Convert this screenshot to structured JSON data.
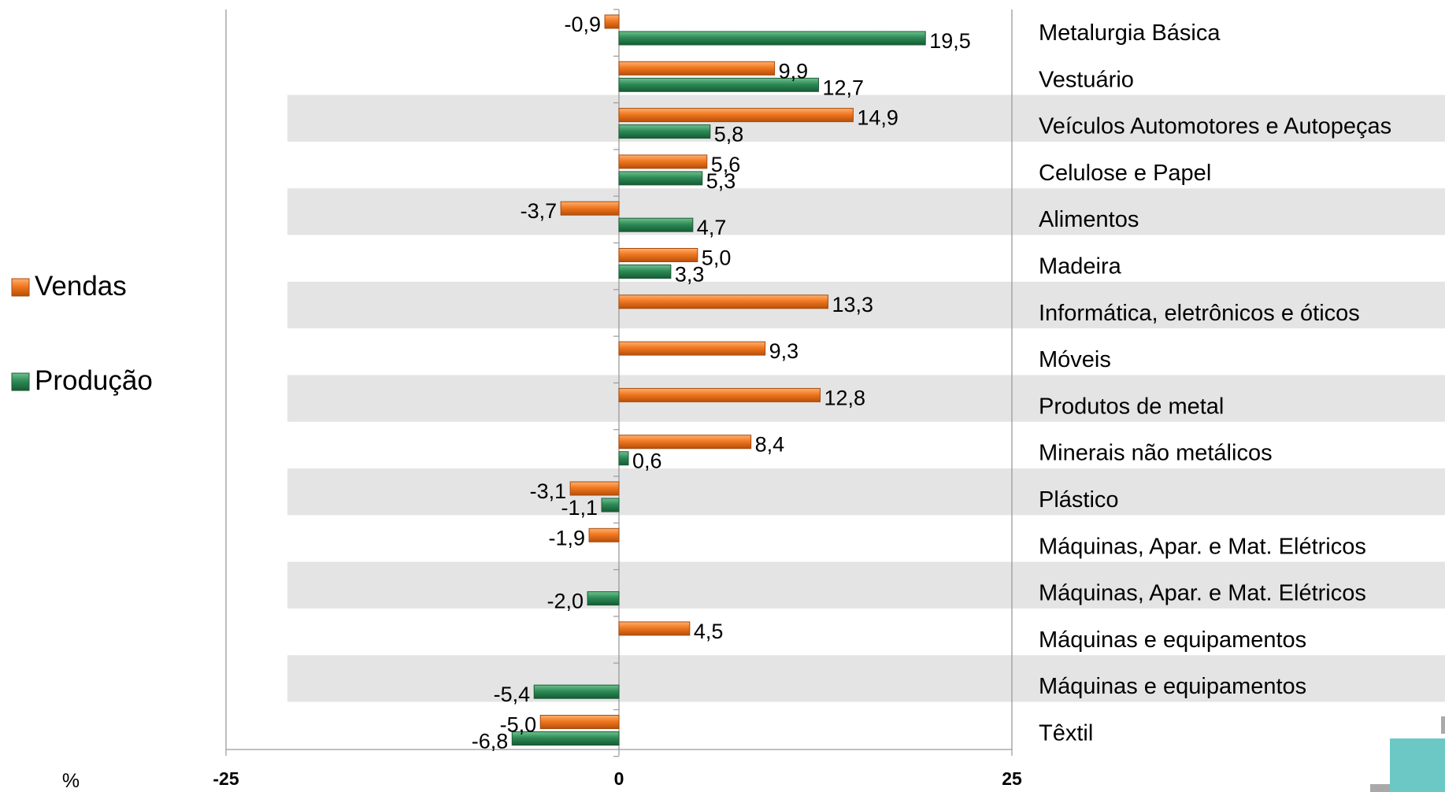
{
  "chart_data": {
    "type": "bar",
    "orientation": "horizontal",
    "xlim": [
      -25,
      25
    ],
    "x_ticks": [
      "-25",
      "0",
      "25"
    ],
    "unit_label": "%",
    "legend_position": "left",
    "colors": {
      "Vendas": "#f07820",
      "Produção": "#2e8b57",
      "band": "#e4e4e4"
    },
    "categories": [
      "Metalurgia Básica",
      "Vestuário",
      "Veículos Automotores e Autopeças",
      "Celulose e Papel",
      "Alimentos",
      "Madeira",
      "Informática, eletrônicos e óticos",
      "Móveis",
      "Produtos de metal",
      "Minerais não metálicos",
      "Plástico",
      "Máquinas, Apar. e Mat. Elétricos",
      "Máquinas, Apar. e Mat. Elétricos",
      "Máquinas e equipamentos",
      "Máquinas e equipamentos",
      "Têxtil"
    ],
    "series": [
      {
        "name": "Vendas",
        "values": [
          -0.9,
          9.9,
          14.9,
          5.6,
          -3.7,
          5.0,
          13.3,
          9.3,
          12.8,
          8.4,
          -3.1,
          -1.9,
          null,
          4.5,
          null,
          -5.0
        ],
        "labels": [
          "-0,9",
          "9,9",
          "14,9",
          "5,6",
          "-3,7",
          "5,0",
          "13,3",
          "9,3",
          "12,8",
          "8,4",
          "-3,1",
          "-1,9",
          null,
          "4,5",
          null,
          "-5,0"
        ]
      },
      {
        "name": "Produção",
        "values": [
          19.5,
          12.7,
          5.8,
          5.3,
          4.7,
          3.3,
          null,
          null,
          null,
          0.6,
          -1.1,
          null,
          -2.0,
          null,
          -5.4,
          -6.8
        ],
        "labels": [
          "19,5",
          "12,7",
          "5,8",
          "5,3",
          "4,7",
          "3,3",
          null,
          null,
          null,
          "0,6",
          "-1,1",
          null,
          "-2,0",
          null,
          "-5,4",
          "-6,8"
        ]
      }
    ]
  }
}
